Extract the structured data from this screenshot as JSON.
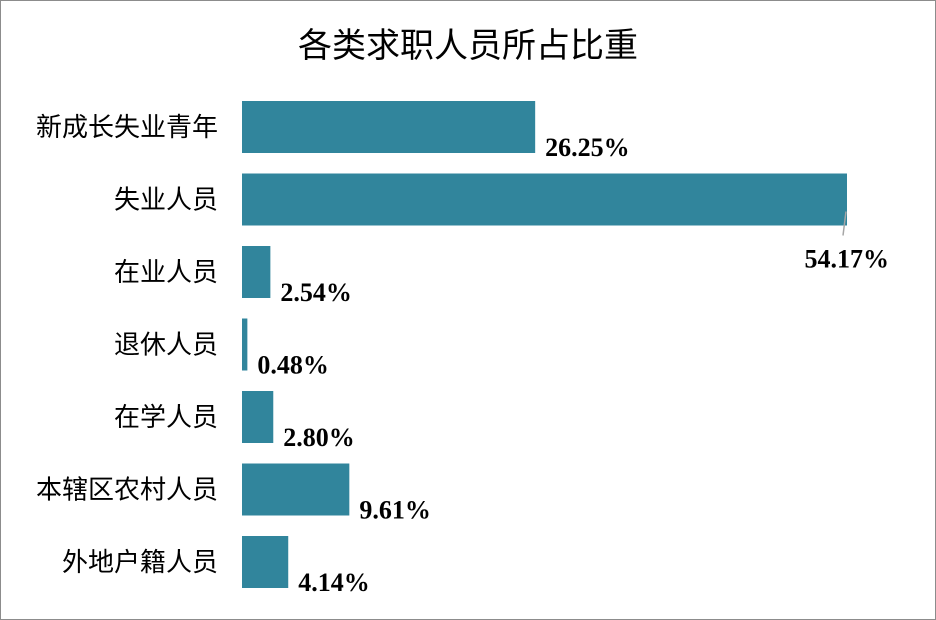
{
  "chart_data": {
    "type": "bar",
    "orientation": "horizontal",
    "title": "各类求职人员所占比重",
    "categories": [
      "新成长失业青年",
      "失业人员",
      "在业人员",
      "退休人员",
      "在学人员",
      "本辖区农村人员",
      "外地户籍人员"
    ],
    "values": [
      26.25,
      54.17,
      2.54,
      0.48,
      2.8,
      9.61,
      4.14
    ],
    "value_labels": [
      "26.25%",
      "54.17%",
      "2.54%",
      "0.48%",
      "2.80%",
      "9.61%",
      "4.14%"
    ],
    "unit": "%",
    "xlim": [
      0,
      54.17
    ],
    "grid": false,
    "legend": "none",
    "bar_color": "#31859c"
  }
}
